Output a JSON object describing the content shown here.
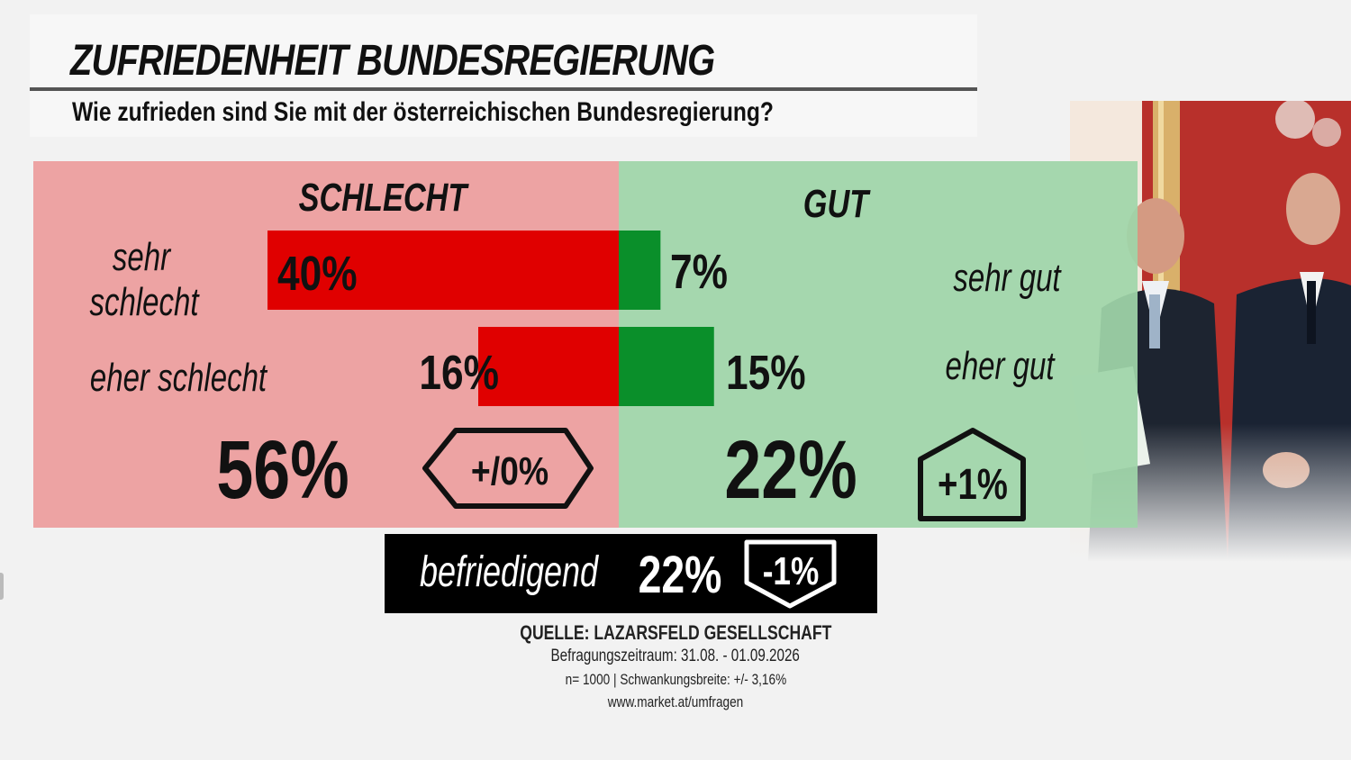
{
  "header": {
    "title": "ZUFRIEDENHEIT BUNDESREGIERUNG",
    "subtitle": "Wie zufrieden sind Sie mit der österreichischen Bundesregierung?"
  },
  "colors": {
    "bad_panel": "#eda3a3",
    "good_panel": "#9fd5a9",
    "bad_bar": "#e00000",
    "good_bar": "#0a8f2a"
  },
  "chart_data": {
    "type": "bar",
    "orientation": "diverging-horizontal",
    "groups": [
      {
        "name": "SCHLECHT",
        "total_label": "56%",
        "total": 56,
        "change_label": "+/0%",
        "change": 0
      },
      {
        "name": "GUT",
        "total_label": "22%",
        "total": 22,
        "change_label": "+1%",
        "change": 1
      }
    ],
    "rows": [
      {
        "bad_label": "sehr schlecht",
        "bad_value": 40,
        "bad_value_label": "40%",
        "good_label": "sehr gut",
        "good_value": 7,
        "good_value_label": "7%"
      },
      {
        "bad_label": "eher schlecht",
        "bad_value": 16,
        "bad_value_label": "16%",
        "good_label": "eher gut",
        "good_value": 15,
        "good_value_label": "15%"
      }
    ],
    "neutral": {
      "label": "befriedigend",
      "value": 22,
      "value_label": "22%",
      "change_label": "-1%",
      "change": -1
    }
  },
  "source": {
    "line1": "QUELLE: LAZARSFELD GESELLSCHAFT",
    "line2": "Befragungszeitraum: 31.08. - 01.09.2026",
    "line3": "n= 1000 | Schwankungsbreite: +/- 3,16%",
    "line4": "www.market.at/umfragen"
  }
}
